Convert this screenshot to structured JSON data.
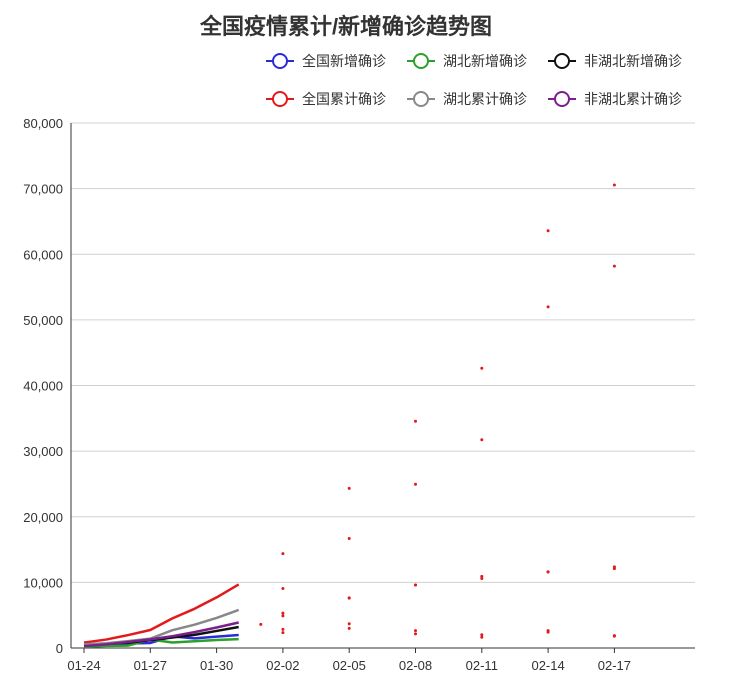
{
  "chart_data": {
    "type": "line",
    "title": "全国疫情累计/新增确诊趋势图",
    "xlabel": "",
    "ylabel": "",
    "ylim": [
      0,
      80000
    ],
    "y_ticks": [
      "0",
      "10,000",
      "20,000",
      "30,000",
      "40,000",
      "50,000",
      "60,000",
      "70,000",
      "80,000"
    ],
    "x_tick_labels": [
      "01-24",
      "01-27",
      "01-30",
      "02-02",
      "02-05",
      "02-08",
      "02-11",
      "02-14",
      "02-17"
    ],
    "x_tick_indices": [
      0,
      3,
      6,
      9,
      12,
      15,
      18,
      21,
      24
    ],
    "x_categories": [
      "01-24",
      "01-25",
      "01-26",
      "01-27",
      "01-28",
      "01-29",
      "01-30",
      "01-31",
      "02-01",
      "02-02",
      "02-03",
      "02-04",
      "02-05",
      "02-06",
      "02-07",
      "02-08",
      "02-09",
      "02-10",
      "02-11",
      "02-12",
      "02-13",
      "02-14",
      "02-15",
      "02-16",
      "02-17",
      "02-18",
      "02-19",
      "02-20"
    ],
    "grid": true,
    "legend_position": "top-right",
    "series": [
      {
        "name": "全国新增确诊",
        "color": "#2b2bd8",
        "values": [
          259,
          444,
          688,
          769,
          1771,
          1459,
          1737,
          1982,
          null,
          2829,
          null,
          null,
          3694,
          null,
          null,
          2656,
          null,
          null,
          2015,
          null,
          null,
          2641,
          null,
          null,
          1886,
          null,
          null,
          null
        ]
      },
      {
        "name": "湖北新增确诊",
        "color": "#2ca02c",
        "values": [
          180,
          323,
          371,
          1291,
          840,
          1032,
          1220,
          1347,
          null,
          2345,
          null,
          null,
          2987,
          null,
          null,
          2147,
          null,
          null,
          1638,
          null,
          null,
          2420,
          null,
          null,
          1807,
          null,
          null,
          null
        ]
      },
      {
        "name": "非湖北新增确诊",
        "color": "#111111",
        "values": [
          400,
          600,
          800,
          1200,
          1600,
          2000,
          2600,
          3200,
          3600,
          4900,
          null,
          null,
          7600,
          null,
          null,
          9600,
          null,
          null,
          10600,
          null,
          null,
          11600,
          null,
          null,
          12100,
          null,
          null,
          null
        ]
      },
      {
        "name": "全国累计确诊",
        "color": "#e31a1c",
        "values": [
          830,
          1287,
          1975,
          2744,
          4515,
          5974,
          7711,
          9692,
          null,
          14380,
          null,
          null,
          24324,
          null,
          null,
          34546,
          null,
          null,
          42638,
          null,
          null,
          63581,
          null,
          null,
          70548,
          null,
          null,
          null
        ]
      },
      {
        "name": "湖北累计确诊",
        "color": "#888888",
        "values": [
          549,
          729,
          1052,
          1423,
          2714,
          3554,
          4586,
          5806,
          null,
          9074,
          null,
          null,
          16678,
          null,
          null,
          24953,
          null,
          null,
          31728,
          null,
          null,
          51986,
          null,
          null,
          58182,
          null,
          null,
          null
        ]
      },
      {
        "name": "非湖北累计确诊",
        "color": "#7b1f8e",
        "values": [
          281,
          558,
          923,
          1321,
          1801,
          2420,
          3125,
          3886,
          null,
          5306,
          null,
          null,
          7646,
          null,
          null,
          9593,
          null,
          null,
          10910,
          null,
          null,
          11595,
          null,
          null,
          12366,
          null,
          null,
          null
        ]
      }
    ]
  }
}
